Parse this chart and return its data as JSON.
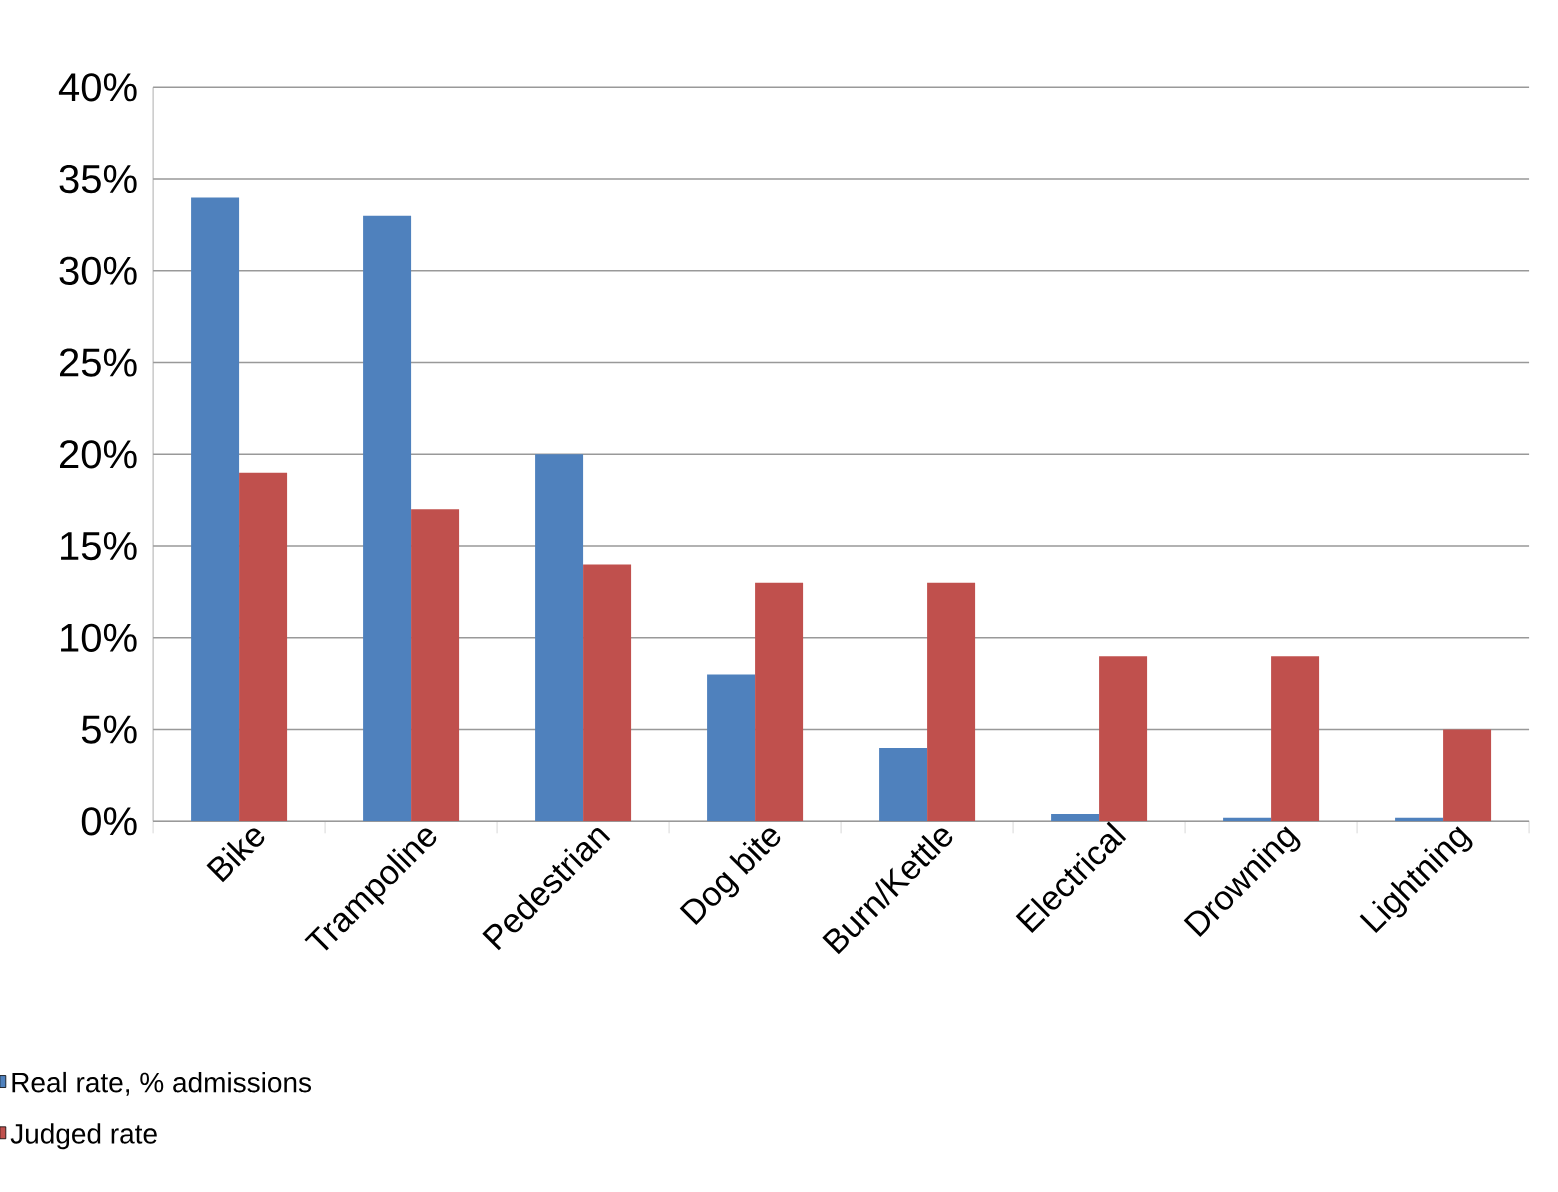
{
  "chart_data": {
    "type": "bar",
    "categories": [
      "Bike",
      "Trampoline",
      "Pedestrian",
      "Dog bite",
      "Burn/Kettle",
      "Electrical",
      "Drowning",
      "Lightning"
    ],
    "series": [
      {
        "name": "Real rate, % admissions",
        "color": "#4f81bd",
        "values": [
          34,
          33,
          20,
          8,
          4,
          0.4,
          0.2,
          0.2
        ]
      },
      {
        "name": "Judged rate",
        "color": "#c0504d",
        "values": [
          19,
          17,
          14,
          13,
          13,
          9,
          9,
          5
        ]
      }
    ],
    "ylim": [
      0,
      40
    ],
    "yticks": [
      {
        "value": 0,
        "label": "0%"
      },
      {
        "value": 5,
        "label": "5%"
      },
      {
        "value": 10,
        "label": "10%"
      },
      {
        "value": 15,
        "label": "15%"
      },
      {
        "value": 20,
        "label": "20%"
      },
      {
        "value": 25,
        "label": "25%"
      },
      {
        "value": 30,
        "label": "30%"
      },
      {
        "value": 35,
        "label": "35%"
      },
      {
        "value": 40,
        "label": "40%"
      }
    ],
    "grid": "y",
    "legend": "bottom left"
  }
}
